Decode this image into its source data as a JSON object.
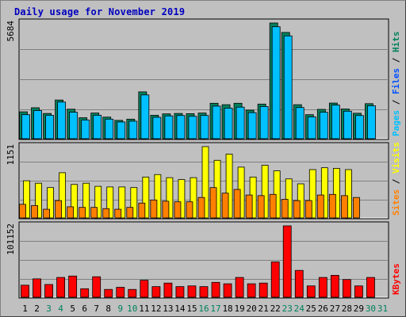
{
  "title": "Daily usage for November 2019",
  "colors": {
    "hits": "#00805c",
    "files": "#00c0ff",
    "pages": "#00e0ff",
    "visits": "#ffff00",
    "sites": "#ff8000",
    "kbytes": "#ff0000",
    "weekend_label": "#00805c",
    "weekday_label": "#000000",
    "plot_bg": "#c0c0c0",
    "grid": "#808080"
  },
  "chart_data": [
    {
      "type": "bar",
      "panel": "hits-files-pages",
      "ymax_label": "5684",
      "ylim": [
        0,
        5684
      ],
      "right_labels": [
        {
          "text": "Pages",
          "color": "#00c0ff"
        },
        {
          "text": " / ",
          "color": "#000000"
        },
        {
          "text": "Files",
          "color": "#0050ff"
        },
        {
          "text": " / ",
          "color": "#000000"
        },
        {
          "text": "Hits",
          "color": "#00805c"
        }
      ],
      "series": [
        {
          "name": "Hits",
          "values": [
            1320,
            1520,
            1240,
            1900,
            1450,
            1030,
            1260,
            1060,
            900,
            960,
            2300,
            1150,
            1220,
            1240,
            1230,
            1260,
            1740,
            1670,
            1740,
            1400,
            1700,
            5684,
            5220,
            1670,
            1180,
            1440,
            1750,
            1460,
            1250,
            1720,
            0
          ]
        },
        {
          "name": "Files",
          "values": [
            1180,
            1380,
            1150,
            1800,
            1300,
            920,
            1150,
            960,
            820,
            860,
            2150,
            1050,
            1120,
            1140,
            1100,
            1140,
            1600,
            1500,
            1550,
            1280,
            1580,
            5500,
            5050,
            1530,
            1070,
            1300,
            1650,
            1350,
            1140,
            1620,
            0
          ]
        }
      ]
    },
    {
      "type": "bar",
      "panel": "visits-sites",
      "ymax_label": "1151",
      "ylim": [
        0,
        1151
      ],
      "right_labels": [
        {
          "text": "Sites",
          "color": "#ff8000"
        },
        {
          "text": " / ",
          "color": "#000000"
        },
        {
          "text": "Visits",
          "color": "#ffff00"
        }
      ],
      "series": [
        {
          "name": "Visits",
          "values": [
            600,
            560,
            490,
            730,
            540,
            560,
            510,
            500,
            500,
            490,
            660,
            700,
            650,
            620,
            650,
            1151,
            930,
            1030,
            820,
            660,
            850,
            760,
            630,
            550,
            780,
            810,
            800,
            780,
            0,
            0,
            0
          ]
        },
        {
          "name": "Sites",
          "values": [
            220,
            200,
            140,
            280,
            180,
            170,
            170,
            150,
            140,
            170,
            240,
            290,
            270,
            260,
            260,
            330,
            490,
            400,
            460,
            370,
            360,
            380,
            300,
            280,
            280,
            370,
            380,
            360,
            330,
            0,
            0
          ]
        }
      ]
    },
    {
      "type": "bar",
      "panel": "kbytes",
      "ymax_label": "101152",
      "ylim": [
        0,
        101152
      ],
      "right_labels": [
        {
          "text": "KBytes",
          "color": "#ff0000"
        }
      ],
      "series": [
        {
          "name": "KBytes",
          "values": [
            17000,
            26000,
            18000,
            28000,
            30000,
            12000,
            29000,
            11000,
            14000,
            11000,
            24000,
            15000,
            20000,
            15000,
            16000,
            15000,
            21000,
            19000,
            28000,
            19000,
            20000,
            50000,
            101152,
            38000,
            16000,
            28000,
            31000,
            25000,
            16000,
            28000,
            0
          ]
        }
      ]
    }
  ],
  "x_labels": [
    {
      "t": "1",
      "we": false
    },
    {
      "t": "2",
      "we": false
    },
    {
      "t": "3",
      "we": true
    },
    {
      "t": "4",
      "we": true
    },
    {
      "t": "5",
      "we": false
    },
    {
      "t": "6",
      "we": false
    },
    {
      "t": "7",
      "we": false
    },
    {
      "t": "8",
      "we": false
    },
    {
      "t": "9",
      "we": true
    },
    {
      "t": "10",
      "we": true
    },
    {
      "t": "11",
      "we": false
    },
    {
      "t": "12",
      "we": false
    },
    {
      "t": "13",
      "we": false
    },
    {
      "t": "14",
      "we": false
    },
    {
      "t": "15",
      "we": false
    },
    {
      "t": "16",
      "we": true
    },
    {
      "t": "17",
      "we": true
    },
    {
      "t": "18",
      "we": false
    },
    {
      "t": "19",
      "we": false
    },
    {
      "t": "20",
      "we": false
    },
    {
      "t": "21",
      "we": false
    },
    {
      "t": "22",
      "we": false
    },
    {
      "t": "23",
      "we": true
    },
    {
      "t": "24",
      "we": true
    },
    {
      "t": "25",
      "we": false
    },
    {
      "t": "26",
      "we": false
    },
    {
      "t": "27",
      "we": false
    },
    {
      "t": "28",
      "we": false
    },
    {
      "t": "29",
      "we": false
    },
    {
      "t": "30",
      "we": true
    },
    {
      "t": "31",
      "we": true
    }
  ]
}
